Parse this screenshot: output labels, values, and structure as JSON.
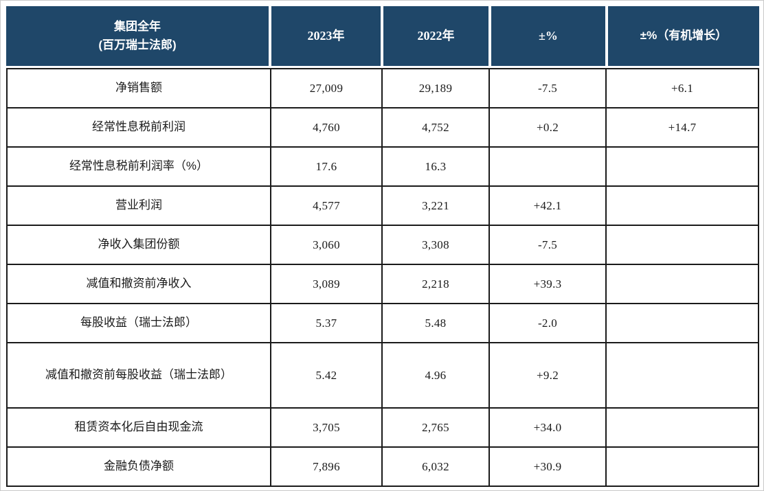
{
  "table": {
    "header": {
      "group_title_line1": "集团全年",
      "group_title_line2": "(百万瑞士法郎)",
      "col_2023": "2023年",
      "col_2022": "2022年",
      "col_pct": "±%",
      "col_pct_organic": "±%（有机增长）"
    },
    "rows": [
      {
        "label": "净销售额",
        "y2023": "27,009",
        "y2022": "29,189",
        "pct": "-7.5",
        "organic": "+6.1"
      },
      {
        "label": "经常性息税前利润",
        "y2023": "4,760",
        "y2022": "4,752",
        "pct": "+0.2",
        "organic": "+14.7"
      },
      {
        "label": "经常性息税前利润率（%）",
        "y2023": "17.6",
        "y2022": "16.3",
        "pct": "",
        "organic": ""
      },
      {
        "label": "营业利润",
        "y2023": "4,577",
        "y2022": "3,221",
        "pct": "+42.1",
        "organic": ""
      },
      {
        "label": "净收入集团份额",
        "y2023": "3,060",
        "y2022": "3,308",
        "pct": "-7.5",
        "organic": ""
      },
      {
        "label": "减值和撤资前净收入",
        "y2023": "3,089",
        "y2022": "2,218",
        "pct": "+39.3",
        "organic": ""
      },
      {
        "label": "每股收益（瑞士法郎）",
        "y2023": "5.37",
        "y2022": "5.48",
        "pct": "-2.0",
        "organic": ""
      },
      {
        "label": "减值和撤资前每股收益（瑞士法郎）",
        "y2023": "5.42",
        "y2022": "4.96",
        "pct": "+9.2",
        "organic": ""
      },
      {
        "label": "租赁资本化后自由现金流",
        "y2023": "3,705",
        "y2022": "2,765",
        "pct": "+34.0",
        "organic": ""
      },
      {
        "label": "金融负债净额",
        "y2023": "7,896",
        "y2022": "6,032",
        "pct": "+30.9",
        "organic": ""
      }
    ]
  },
  "colors": {
    "header_bg": "#1F4769",
    "header_text": "#FFFFFF",
    "border": "#1A1A1A",
    "body_text": "#1A1A1A"
  }
}
